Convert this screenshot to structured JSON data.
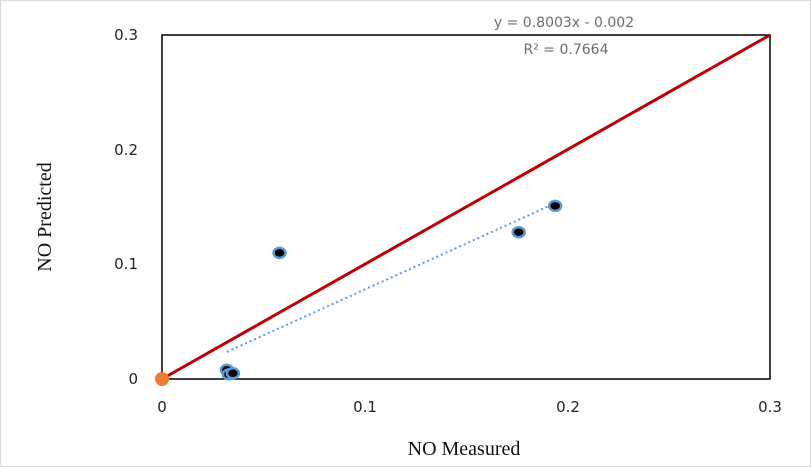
{
  "chart_data": {
    "type": "scatter",
    "xlabel": "NO Measured",
    "ylabel": "NO Predicted",
    "xlim": [
      0,
      0.3
    ],
    "ylim": [
      0,
      0.3
    ],
    "x_ticks": [
      "0",
      "0.1",
      "0.2",
      "0.3"
    ],
    "y_ticks": [
      "0",
      "0.1",
      "0.2",
      "0.3"
    ],
    "grid": false,
    "points": [
      {
        "x": 0.032,
        "y": 0.008
      },
      {
        "x": 0.033,
        "y": 0.004
      },
      {
        "x": 0.035,
        "y": 0.005
      },
      {
        "x": 0.058,
        "y": 0.11
      },
      {
        "x": 0.176,
        "y": 0.128
      },
      {
        "x": 0.194,
        "y": 0.151
      }
    ],
    "identity_line": {
      "from": [
        0,
        0
      ],
      "to": [
        0.3,
        0.3
      ],
      "color": "#c00000"
    },
    "trendline": {
      "slope": 0.8003,
      "intercept": -0.002,
      "x_range": [
        0.032,
        0.194
      ],
      "color": "#5b9bd5",
      "equation": "y = 0.8003x - 0.002",
      "r_squared": "R² = 0.7664"
    },
    "origin_marker_color": "#ed7d31",
    "point_fill": "#000000",
    "point_stroke": "#5b9bd5"
  }
}
